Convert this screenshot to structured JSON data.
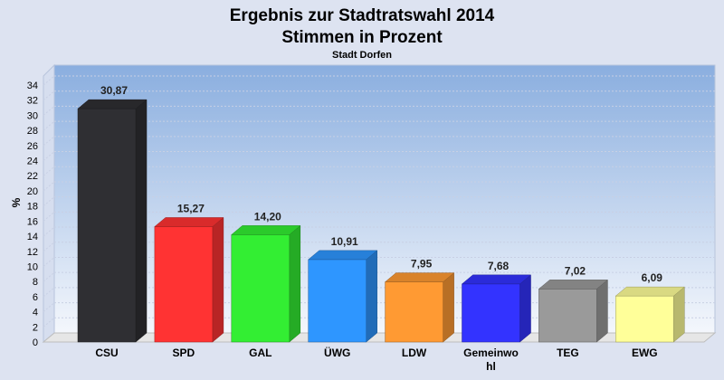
{
  "chart_data": {
    "type": "bar",
    "title": "Ergebnis zur Stadtratswahl 2014",
    "subtitle": "Stimmen in Prozent",
    "subsubtitle": "Stadt Dorfen",
    "ylabel": "%",
    "ylim": [
      0,
      34
    ],
    "yticks": [
      0,
      2,
      4,
      6,
      8,
      10,
      12,
      14,
      16,
      18,
      20,
      22,
      24,
      26,
      28,
      30,
      32,
      34
    ],
    "categories": [
      [
        "CSU"
      ],
      [
        "SPD"
      ],
      [
        "GAL"
      ],
      [
        "ÜWG"
      ],
      [
        "LDW"
      ],
      [
        "Gemeinwo",
        "hl"
      ],
      [
        "TEG"
      ],
      [
        "EWG"
      ]
    ],
    "values": [
      30.87,
      15.27,
      14.2,
      10.91,
      7.95,
      7.68,
      7.02,
      6.09
    ],
    "value_labels": [
      "30,87",
      "15,27",
      "14,20",
      "10,91",
      "7,95",
      "7,68",
      "7,02",
      "6,09"
    ],
    "colors": [
      "#2f2f33",
      "#ff3333",
      "#33ee33",
      "#2e96ff",
      "#ff9a33",
      "#3333ff",
      "#9a9a9a",
      "#ffff99"
    ],
    "grid": true
  }
}
